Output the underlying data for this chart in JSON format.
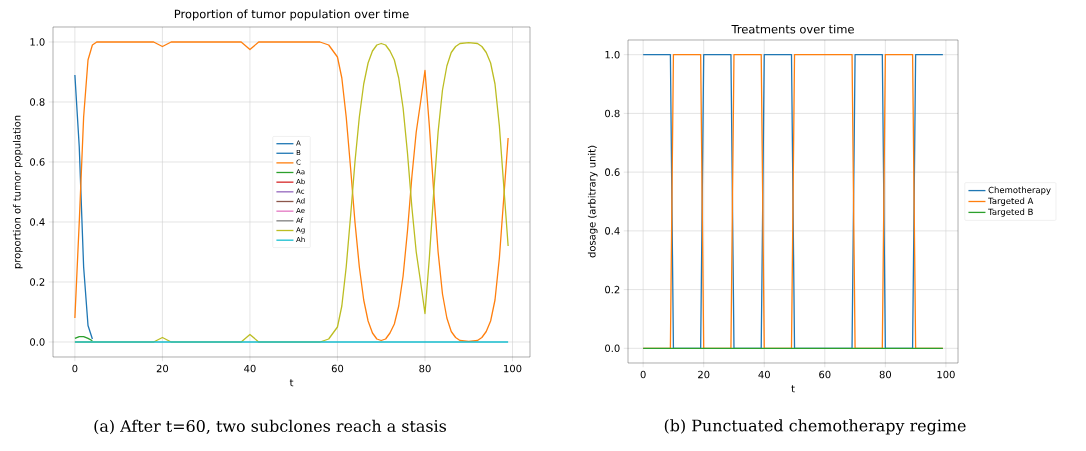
{
  "chart_data": [
    {
      "type": "line",
      "title": "Proportion of tumor population over time",
      "xlabel": "t",
      "ylabel": "proportion of tumor population",
      "grid": true,
      "legend": "center",
      "xlim": [
        -5,
        104
      ],
      "ylim": [
        -0.05,
        1.05
      ],
      "xticks": [
        0,
        20,
        40,
        60,
        80,
        100
      ],
      "yticks": [
        {
          "value": 0,
          "label": "0.0"
        },
        {
          "value": 0.2,
          "label": "0.2"
        },
        {
          "value": 0.4,
          "label": "0.4"
        },
        {
          "value": 0.6,
          "label": "0.6"
        },
        {
          "value": 0.8,
          "label": "0.8"
        },
        {
          "value": 1,
          "label": "1.0"
        }
      ],
      "annotations": [
        "(a) After t=60, two subclones reach a stasis"
      ],
      "series": [
        {
          "name": "A",
          "color": "#1f77b4",
          "x": [
            0,
            1,
            2,
            3,
            4
          ],
          "values": [
            0.89,
            0.65,
            0.25,
            0.055,
            0.01
          ]
        },
        {
          "name": "B",
          "color": "#1f77b4"
        },
        {
          "name": "C",
          "color": "#ff7f0e",
          "x": [
            0,
            1,
            2,
            3,
            4,
            5,
            18,
            20,
            22,
            38,
            40,
            42,
            56,
            58,
            59,
            60,
            61,
            62,
            63,
            64,
            65,
            66,
            67,
            68,
            69,
            70,
            71,
            72,
            73,
            74,
            75,
            76,
            77,
            78,
            79,
            80,
            81,
            82,
            83,
            84,
            85,
            86,
            87,
            88,
            90,
            92,
            93,
            94,
            95,
            96,
            97,
            98,
            99
          ],
          "values": [
            0.08,
            0.4,
            0.75,
            0.94,
            0.99,
            1.0,
            1.0,
            0.985,
            1.0,
            1.0,
            0.975,
            1.0,
            1.0,
            0.99,
            0.97,
            0.95,
            0.88,
            0.75,
            0.58,
            0.4,
            0.25,
            0.14,
            0.07,
            0.03,
            0.01,
            0.005,
            0.01,
            0.03,
            0.06,
            0.12,
            0.22,
            0.37,
            0.55,
            0.7,
            0.8,
            0.905,
            0.72,
            0.5,
            0.3,
            0.16,
            0.08,
            0.035,
            0.015,
            0.005,
            0.002,
            0.005,
            0.015,
            0.035,
            0.07,
            0.14,
            0.28,
            0.48,
            0.68
          ]
        },
        {
          "name": "Aa",
          "color": "#2ca02c",
          "x": [
            0,
            1,
            2,
            3,
            4
          ],
          "values": [
            0.012,
            0.018,
            0.018,
            0.012,
            0.004
          ]
        },
        {
          "name": "Ab",
          "color": "#d62728"
        },
        {
          "name": "Ac",
          "color": "#9467bd"
        },
        {
          "name": "Ad",
          "color": "#8c564b"
        },
        {
          "name": "Ae",
          "color": "#e377c2"
        },
        {
          "name": "Af",
          "color": "#7f7f7f"
        },
        {
          "name": "Ag",
          "color": "#bcbd22",
          "x": [
            0,
            18,
            20,
            22,
            38,
            40,
            42,
            56,
            58,
            59,
            60,
            61,
            62,
            63,
            64,
            65,
            66,
            67,
            68,
            69,
            70,
            71,
            72,
            73,
            74,
            75,
            76,
            77,
            78,
            79,
            80,
            81,
            82,
            83,
            84,
            85,
            86,
            87,
            88,
            90,
            92,
            93,
            94,
            95,
            96,
            97,
            98,
            99
          ],
          "values": [
            0,
            0,
            0.015,
            0,
            0,
            0.025,
            0,
            0,
            0.01,
            0.03,
            0.05,
            0.12,
            0.25,
            0.42,
            0.6,
            0.75,
            0.86,
            0.93,
            0.97,
            0.99,
            0.995,
            0.99,
            0.97,
            0.94,
            0.88,
            0.78,
            0.63,
            0.45,
            0.3,
            0.2,
            0.095,
            0.28,
            0.5,
            0.7,
            0.84,
            0.92,
            0.965,
            0.985,
            0.995,
            0.998,
            0.995,
            0.985,
            0.965,
            0.93,
            0.86,
            0.72,
            0.52,
            0.32
          ]
        },
        {
          "name": "Ah",
          "color": "#17becf",
          "x": [
            0,
            99
          ],
          "values": [
            0,
            0
          ]
        }
      ]
    },
    {
      "type": "line",
      "title": "Treatments over time",
      "xlabel": "t",
      "ylabel": "dosage (arbitrary unit)",
      "grid": true,
      "legend": "right",
      "xlim": [
        -5,
        104
      ],
      "ylim": [
        -0.05,
        1.05
      ],
      "xticks": [
        0,
        20,
        40,
        60,
        80,
        100
      ],
      "yticks": [
        {
          "value": 0,
          "label": "0.0"
        },
        {
          "value": 0.2,
          "label": "0.2"
        },
        {
          "value": 0.4,
          "label": "0.4"
        },
        {
          "value": 0.6,
          "label": "0.6"
        },
        {
          "value": 0.8,
          "label": "0.8"
        },
        {
          "value": 1,
          "label": "1.0"
        }
      ],
      "annotations": [
        "(b) Punctuated chemotherapy regime"
      ],
      "series": [
        {
          "name": "Chemotherapy",
          "color": "#1f77b4",
          "x": [
            0,
            9,
            10,
            19,
            20,
            29,
            30,
            39,
            40,
            49,
            50,
            69,
            70,
            79,
            80,
            89,
            90,
            99
          ],
          "values": [
            1,
            1,
            0,
            0,
            1,
            1,
            0,
            0,
            1,
            1,
            0,
            0,
            1,
            1,
            0,
            0,
            1,
            1
          ]
        },
        {
          "name": "Targeted A",
          "color": "#ff7f0e",
          "x": [
            0,
            9,
            10,
            19,
            20,
            29,
            30,
            39,
            40,
            49,
            50,
            69,
            70,
            79,
            80,
            89,
            90,
            99
          ],
          "values": [
            0,
            0,
            1,
            1,
            0,
            0,
            1,
            1,
            0,
            0,
            1,
            1,
            0,
            0,
            1,
            1,
            0,
            0
          ]
        },
        {
          "name": "Targeted B",
          "color": "#2ca02c",
          "x": [
            0,
            99
          ],
          "values": [
            0,
            0
          ]
        }
      ]
    }
  ]
}
